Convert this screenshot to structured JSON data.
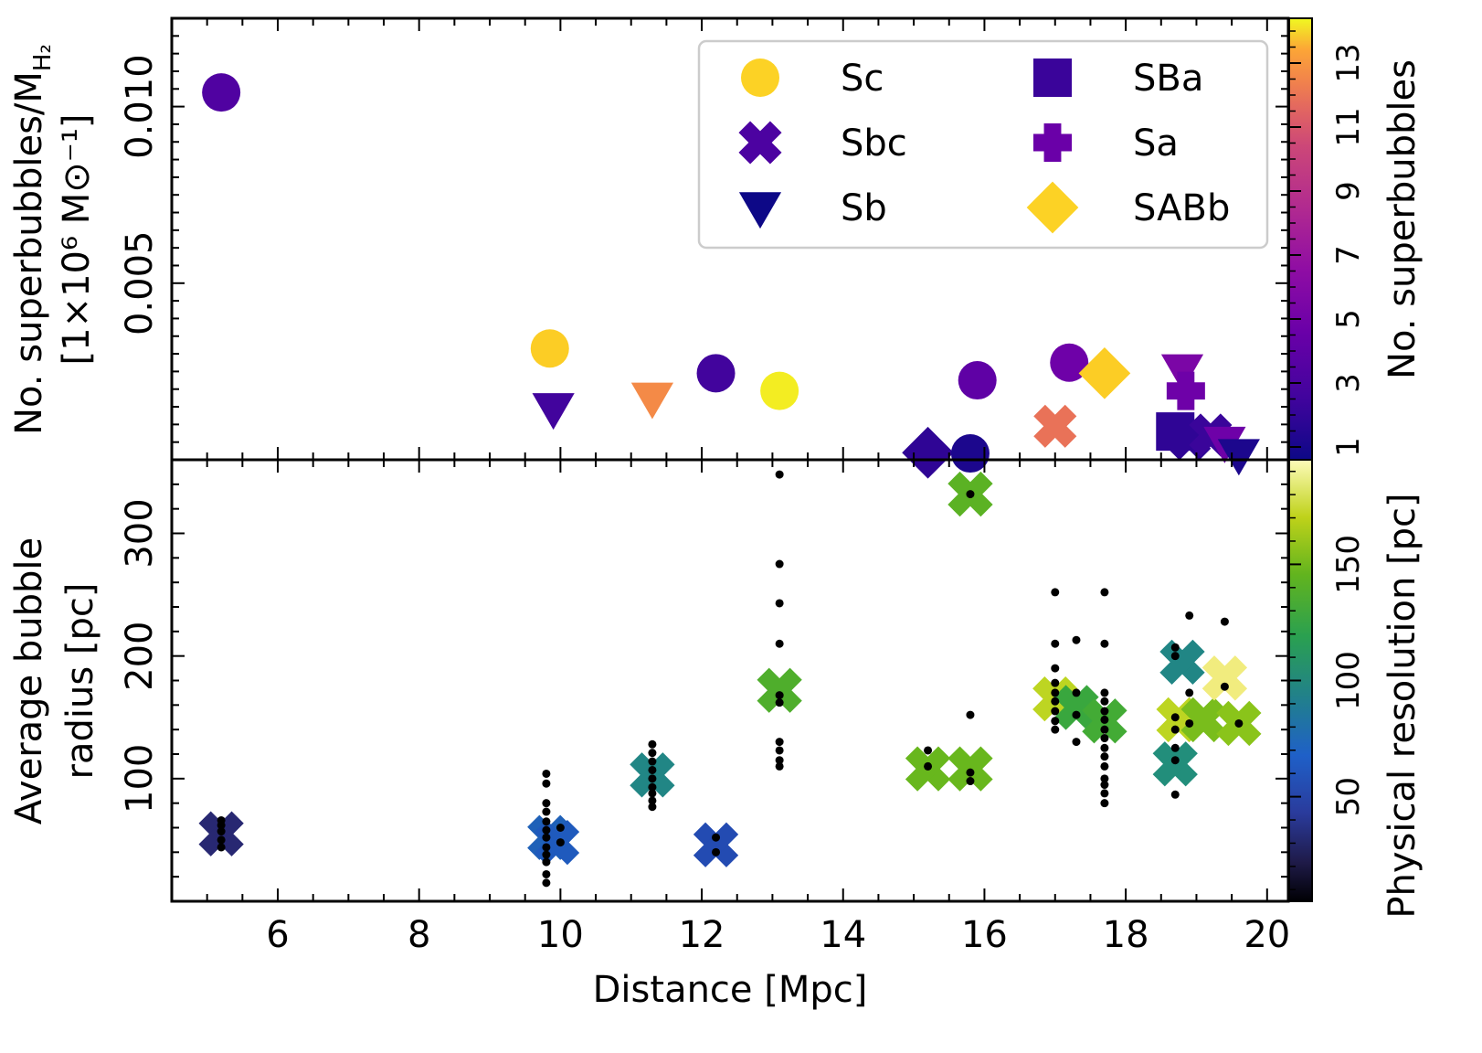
{
  "chart_data": {
    "type": "scatter",
    "shared_x": {
      "label": "Distance [Mpc]",
      "range": [
        4.5,
        20.3
      ],
      "ticks": [
        6,
        8,
        10,
        12,
        14,
        16,
        18,
        20
      ],
      "tick_labels": [
        "6",
        "8",
        "10",
        "12",
        "14",
        "16",
        "18",
        "20"
      ]
    },
    "panels": [
      {
        "id": "top",
        "ylabel_line1": "No. superbubbles/M",
        "ylabel_sub": "H₂",
        "ylabel_line2": "[1×10⁶ M⊙⁻¹]",
        "ylim": [
          0.0,
          0.0125
        ],
        "yticks": [
          0.005,
          0.01
        ],
        "ytick_labels": [
          "0.005",
          "0.010"
        ],
        "colorbar": {
          "label": "No. superbubbles",
          "range": [
            0.6,
            14.4
          ],
          "ticks": [
            1,
            3,
            5,
            7,
            9,
            11,
            13
          ],
          "tick_labels": [
            "1",
            "3",
            "5",
            "7",
            "9",
            "11",
            "13"
          ],
          "colormap": "plasma"
        },
        "legend": {
          "placement": "top-right",
          "entries": [
            {
              "label": "Sc",
              "marker": "circle",
              "color": "#fcd225"
            },
            {
              "label": "Sbc",
              "marker": "x",
              "color": "#4c02a1"
            },
            {
              "label": "Sb",
              "marker": "triangle-down",
              "color": "#0d0887"
            },
            {
              "label": "SBa",
              "marker": "square",
              "color": "#3a049a"
            },
            {
              "label": "Sa",
              "marker": "plus",
              "color": "#6a00a8"
            },
            {
              "label": "SABb",
              "marker": "diamond",
              "color": "#fcd225"
            }
          ]
        },
        "points": [
          {
            "x": 5.2,
            "y": 0.0104,
            "marker": "circle",
            "n": 2.5
          },
          {
            "x": 9.85,
            "y": 0.00315,
            "marker": "circle",
            "n": 13
          },
          {
            "x": 9.9,
            "y": 0.00145,
            "marker": "triangle-down",
            "n": 2
          },
          {
            "x": 11.3,
            "y": 0.00175,
            "marker": "triangle-down",
            "n": 10.5
          },
          {
            "x": 12.2,
            "y": 0.00245,
            "marker": "circle",
            "n": 2
          },
          {
            "x": 13.1,
            "y": 0.00195,
            "marker": "circle",
            "n": 14
          },
          {
            "x": 15.2,
            "y": 0.0002,
            "marker": "diamond",
            "n": 1.5
          },
          {
            "x": 15.8,
            "y": 0.00018,
            "marker": "circle",
            "n": 1
          },
          {
            "x": 15.9,
            "y": 0.00225,
            "marker": "circle",
            "n": 3
          },
          {
            "x": 17.0,
            "y": 0.00095,
            "marker": "x",
            "n": 9.5
          },
          {
            "x": 17.2,
            "y": 0.00275,
            "marker": "circle",
            "n": 3.5
          },
          {
            "x": 17.7,
            "y": 0.00245,
            "marker": "diamond",
            "n": 13
          },
          {
            "x": 18.7,
            "y": 0.0008,
            "marker": "square",
            "n": 1.5
          },
          {
            "x": 18.8,
            "y": 0.00255,
            "marker": "triangle-down",
            "n": 4
          },
          {
            "x": 18.85,
            "y": 0.00195,
            "marker": "plus",
            "n": 3.5
          },
          {
            "x": 18.9,
            "y": 0.0006,
            "marker": "x",
            "n": 1.5
          },
          {
            "x": 19.2,
            "y": 0.0007,
            "marker": "x",
            "n": 1.8
          },
          {
            "x": 19.4,
            "y": 0.0005,
            "marker": "triangle-down",
            "n": 3.5
          },
          {
            "x": 19.6,
            "y": 0.00015,
            "marker": "triangle-down",
            "n": 1
          }
        ]
      },
      {
        "id": "bottom",
        "ylabel_line1": "Average bubble",
        "ylabel_line2": "radius [pc]",
        "ylim": [
          0,
          360
        ],
        "yticks": [
          100,
          200,
          300
        ],
        "ytick_labels": [
          "100",
          "200",
          "300"
        ],
        "colorbar": {
          "label": "Physical resolution [pc]",
          "range": [
            5,
            195
          ],
          "ticks": [
            50,
            100,
            150
          ],
          "tick_labels": [
            "50",
            "100",
            "150"
          ],
          "colormap": "viridis"
        },
        "averages": [
          {
            "x": 5.2,
            "y": 55,
            "res": 20
          },
          {
            "x": 9.85,
            "y": 52,
            "res": 65
          },
          {
            "x": 9.95,
            "y": 48,
            "res": 60
          },
          {
            "x": 11.3,
            "y": 103,
            "res": 95
          },
          {
            "x": 12.2,
            "y": 46,
            "res": 50
          },
          {
            "x": 13.1,
            "y": 172,
            "res": 135
          },
          {
            "x": 15.2,
            "y": 108,
            "res": 145
          },
          {
            "x": 15.8,
            "y": 108,
            "res": 145
          },
          {
            "x": 15.8,
            "y": 332,
            "res": 140
          },
          {
            "x": 17.0,
            "y": 165,
            "res": 170
          },
          {
            "x": 17.3,
            "y": 158,
            "res": 125
          },
          {
            "x": 17.7,
            "y": 147,
            "res": 130
          },
          {
            "x": 18.7,
            "y": 112,
            "res": 100
          },
          {
            "x": 18.8,
            "y": 195,
            "res": 95
          },
          {
            "x": 18.75,
            "y": 148,
            "res": 170
          },
          {
            "x": 19.1,
            "y": 148,
            "res": 150
          },
          {
            "x": 19.4,
            "y": 182,
            "res": 190
          },
          {
            "x": 19.6,
            "y": 145,
            "res": 155
          }
        ],
        "individual_bubbles": [
          {
            "x": 5.2,
            "y": 44
          },
          {
            "x": 5.2,
            "y": 50
          },
          {
            "x": 5.2,
            "y": 57
          },
          {
            "x": 5.2,
            "y": 62
          },
          {
            "x": 5.2,
            "y": 66
          },
          {
            "x": 9.8,
            "y": 15
          },
          {
            "x": 9.8,
            "y": 22
          },
          {
            "x": 9.8,
            "y": 32
          },
          {
            "x": 9.8,
            "y": 38
          },
          {
            "x": 9.8,
            "y": 44
          },
          {
            "x": 9.8,
            "y": 52
          },
          {
            "x": 9.8,
            "y": 58
          },
          {
            "x": 9.8,
            "y": 65
          },
          {
            "x": 9.8,
            "y": 73
          },
          {
            "x": 9.8,
            "y": 80
          },
          {
            "x": 9.8,
            "y": 96
          },
          {
            "x": 9.8,
            "y": 104
          },
          {
            "x": 10.0,
            "y": 48
          },
          {
            "x": 10.0,
            "y": 60
          },
          {
            "x": 11.3,
            "y": 77
          },
          {
            "x": 11.3,
            "y": 82
          },
          {
            "x": 11.3,
            "y": 88
          },
          {
            "x": 11.3,
            "y": 93
          },
          {
            "x": 11.3,
            "y": 100
          },
          {
            "x": 11.3,
            "y": 107
          },
          {
            "x": 11.3,
            "y": 114
          },
          {
            "x": 11.3,
            "y": 121
          },
          {
            "x": 11.3,
            "y": 128
          },
          {
            "x": 12.2,
            "y": 40
          },
          {
            "x": 12.2,
            "y": 52
          },
          {
            "x": 13.1,
            "y": 110
          },
          {
            "x": 13.1,
            "y": 115
          },
          {
            "x": 13.1,
            "y": 123
          },
          {
            "x": 13.1,
            "y": 130
          },
          {
            "x": 13.1,
            "y": 162
          },
          {
            "x": 13.1,
            "y": 168
          },
          {
            "x": 13.1,
            "y": 210
          },
          {
            "x": 13.1,
            "y": 243
          },
          {
            "x": 13.1,
            "y": 275
          },
          {
            "x": 13.1,
            "y": 348
          },
          {
            "x": 15.2,
            "y": 110
          },
          {
            "x": 15.2,
            "y": 123
          },
          {
            "x": 15.8,
            "y": 98
          },
          {
            "x": 15.8,
            "y": 105
          },
          {
            "x": 15.8,
            "y": 152
          },
          {
            "x": 15.8,
            "y": 332
          },
          {
            "x": 17.0,
            "y": 140
          },
          {
            "x": 17.0,
            "y": 147
          },
          {
            "x": 17.0,
            "y": 155
          },
          {
            "x": 17.0,
            "y": 163
          },
          {
            "x": 17.0,
            "y": 170
          },
          {
            "x": 17.0,
            "y": 178
          },
          {
            "x": 17.0,
            "y": 190
          },
          {
            "x": 17.0,
            "y": 210
          },
          {
            "x": 17.0,
            "y": 252
          },
          {
            "x": 17.3,
            "y": 130
          },
          {
            "x": 17.3,
            "y": 152
          },
          {
            "x": 17.3,
            "y": 170
          },
          {
            "x": 17.3,
            "y": 213
          },
          {
            "x": 17.7,
            "y": 80
          },
          {
            "x": 17.7,
            "y": 88
          },
          {
            "x": 17.7,
            "y": 95
          },
          {
            "x": 17.7,
            "y": 100
          },
          {
            "x": 17.7,
            "y": 110
          },
          {
            "x": 17.7,
            "y": 118
          },
          {
            "x": 17.7,
            "y": 125
          },
          {
            "x": 17.7,
            "y": 133
          },
          {
            "x": 17.7,
            "y": 140
          },
          {
            "x": 17.7,
            "y": 148
          },
          {
            "x": 17.7,
            "y": 155
          },
          {
            "x": 17.7,
            "y": 163
          },
          {
            "x": 17.7,
            "y": 170
          },
          {
            "x": 17.7,
            "y": 210
          },
          {
            "x": 17.7,
            "y": 252
          },
          {
            "x": 18.7,
            "y": 87
          },
          {
            "x": 18.7,
            "y": 115
          },
          {
            "x": 18.7,
            "y": 125
          },
          {
            "x": 18.7,
            "y": 140
          },
          {
            "x": 18.7,
            "y": 150
          },
          {
            "x": 18.7,
            "y": 200
          },
          {
            "x": 18.7,
            "y": 207
          },
          {
            "x": 18.9,
            "y": 145
          },
          {
            "x": 18.9,
            "y": 170
          },
          {
            "x": 18.9,
            "y": 233
          },
          {
            "x": 19.4,
            "y": 175
          },
          {
            "x": 19.4,
            "y": 228
          },
          {
            "x": 19.6,
            "y": 145
          }
        ]
      }
    ]
  }
}
